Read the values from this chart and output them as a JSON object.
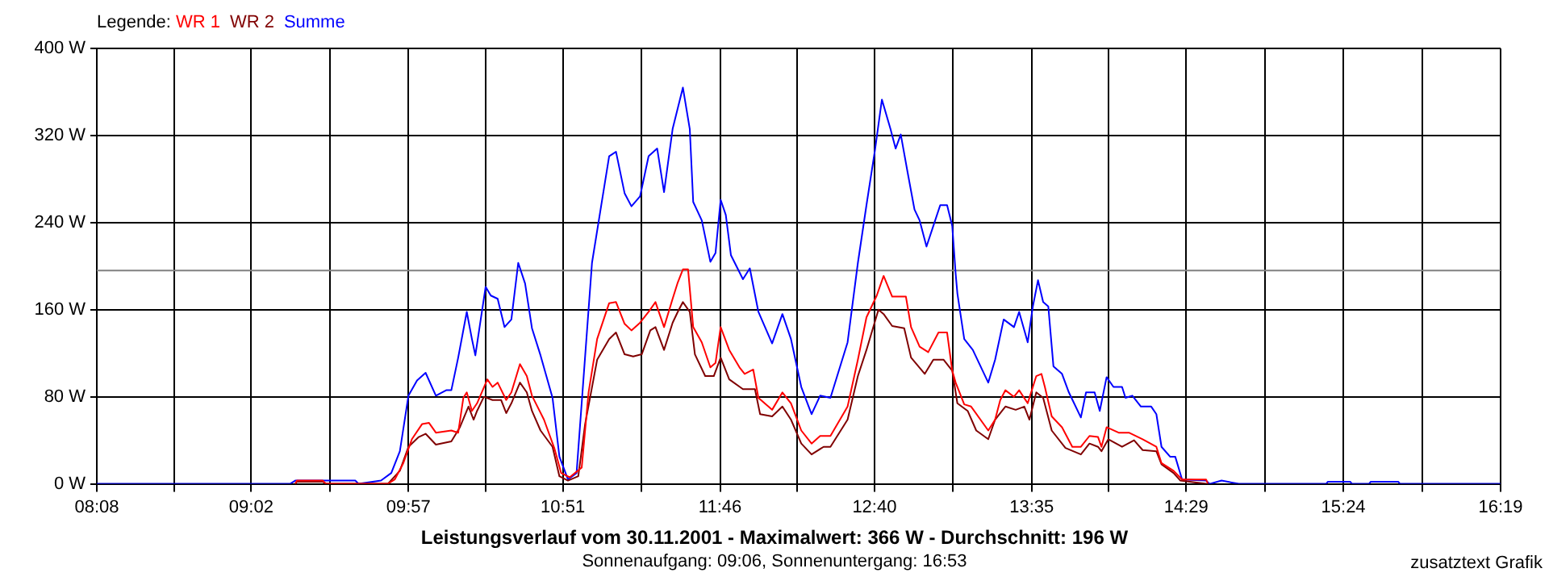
{
  "chart_data": {
    "type": "line",
    "title": "Leistungsverlauf vom 30.11.2001 - Maximalwert: 366 W - Durchschnitt: 196 W",
    "subtitle": "Sonnenaufgang: 09:06, Sonnenuntergang: 16:53",
    "legend_title": "Legende:",
    "annotations": [
      "zusatztext Grafik"
    ],
    "series": [
      {
        "name": "WR 1",
        "color": "#ff0000",
        "x": [
          9.29,
          9.3,
          9.45,
          9.47,
          9.83,
          9.87,
          9.92,
          9.97,
          10.03,
          10.07,
          10.11,
          10.2,
          10.24,
          10.27,
          10.29,
          10.32,
          10.35,
          10.41,
          10.44,
          10.47,
          10.52,
          10.55,
          10.6,
          10.64,
          10.67,
          10.74,
          10.8,
          10.84,
          10.89,
          10.96,
          11.0,
          11.05,
          11.12,
          11.16,
          11.21,
          11.25,
          11.3,
          11.35,
          11.39,
          11.44,
          11.49,
          11.52,
          11.55,
          11.58,
          11.61,
          11.66,
          11.71,
          11.74,
          11.77,
          11.82,
          11.88,
          11.91,
          11.96,
          11.99,
          12.07,
          12.13,
          12.18,
          12.24,
          12.3,
          12.35,
          12.41,
          12.51,
          12.57,
          12.62,
          12.68,
          12.72,
          12.77,
          12.81,
          12.85,
          12.88,
          12.93,
          12.98,
          13.04,
          13.09,
          13.12,
          13.14,
          13.19,
          13.23,
          13.33,
          13.37,
          13.4,
          13.43,
          13.48,
          13.51,
          13.56,
          13.61,
          13.64,
          13.66,
          13.7,
          13.76,
          13.82,
          13.87,
          13.92,
          13.97,
          13.99,
          14.02,
          14.09,
          14.15,
          14.23,
          14.31,
          14.34,
          14.41,
          14.46,
          14.6,
          14.61
        ],
        "values": [
          0,
          3,
          3,
          0,
          0,
          4,
          19,
          41,
          55,
          56,
          47,
          49,
          47,
          79,
          84,
          67,
          74,
          96,
          89,
          93,
          77,
          84,
          110,
          99,
          81,
          59,
          33,
          10,
          6,
          15,
          84,
          133,
          166,
          167,
          147,
          141,
          148,
          158,
          167,
          144,
          170,
          185,
          197,
          197,
          144,
          130,
          107,
          111,
          144,
          123,
          107,
          101,
          105,
          79,
          68,
          84,
          74,
          49,
          37,
          44,
          44,
          71,
          114,
          153,
          173,
          191,
          172,
          172,
          172,
          144,
          126,
          121,
          139,
          139,
          104,
          93,
          73,
          71,
          49,
          59,
          77,
          86,
          80,
          86,
          74,
          99,
          101,
          89,
          62,
          52,
          34,
          34,
          44,
          43,
          34,
          52,
          47,
          47,
          41,
          34,
          19,
          12,
          4,
          4,
          0
        ]
      },
      {
        "name": "WR 2",
        "color": "#800000",
        "x": [
          9.29,
          9.3,
          9.45,
          9.47,
          9.83,
          9.9,
          9.95,
          10.01,
          10.05,
          10.11,
          10.2,
          10.25,
          10.3,
          10.33,
          10.35,
          10.39,
          10.44,
          10.49,
          10.52,
          10.55,
          10.6,
          10.64,
          10.67,
          10.72,
          10.79,
          10.83,
          10.88,
          10.94,
          10.98,
          11.05,
          11.12,
          11.16,
          11.21,
          11.26,
          11.31,
          11.36,
          11.39,
          11.44,
          11.49,
          11.52,
          11.55,
          11.59,
          11.62,
          11.68,
          11.73,
          11.77,
          11.82,
          11.9,
          11.97,
          12.0,
          12.07,
          12.13,
          12.18,
          12.24,
          12.3,
          12.37,
          12.41,
          12.51,
          12.57,
          12.62,
          12.69,
          12.72,
          12.77,
          12.84,
          12.88,
          12.96,
          13.01,
          13.07,
          13.12,
          13.15,
          13.21,
          13.26,
          13.33,
          13.37,
          13.43,
          13.49,
          13.54,
          13.57,
          13.61,
          13.65,
          13.7,
          13.78,
          13.87,
          13.92,
          13.97,
          13.99,
          14.03,
          14.11,
          14.18,
          14.23,
          14.31,
          14.34,
          14.41,
          14.45,
          14.6
        ],
        "values": [
          0,
          2,
          2,
          0,
          0,
          12,
          34,
          43,
          46,
          36,
          39,
          52,
          71,
          59,
          67,
          80,
          77,
          77,
          65,
          74,
          93,
          84,
          67,
          49,
          34,
          7,
          3,
          7,
          55,
          114,
          133,
          139,
          119,
          117,
          119,
          141,
          144,
          123,
          148,
          158,
          167,
          158,
          119,
          99,
          99,
          116,
          96,
          87,
          87,
          64,
          62,
          71,
          59,
          37,
          27,
          34,
          34,
          59,
          99,
          123,
          160,
          156,
          145,
          143,
          116,
          101,
          114,
          114,
          104,
          74,
          67,
          49,
          41,
          59,
          71,
          68,
          71,
          59,
          84,
          79,
          49,
          33,
          27,
          37,
          34,
          30,
          41,
          34,
          40,
          31,
          30,
          18,
          10,
          3,
          0
        ]
      },
      {
        "name": "Summe",
        "color": "#0000ff",
        "x": [
          8.1333,
          9.26,
          9.29,
          9.64,
          9.66,
          9.79,
          9.85,
          9.9,
          9.95,
          10.0,
          10.05,
          10.11,
          10.17,
          10.2,
          10.24,
          10.29,
          10.32,
          10.34,
          10.4,
          10.43,
          10.47,
          10.51,
          10.55,
          10.59,
          10.63,
          10.67,
          10.72,
          10.79,
          10.83,
          10.88,
          10.93,
          11.02,
          11.07,
          11.12,
          11.16,
          11.21,
          11.25,
          11.3,
          11.35,
          11.4,
          11.44,
          11.49,
          11.55,
          11.59,
          11.61,
          11.66,
          11.71,
          11.74,
          11.77,
          11.8,
          11.83,
          11.9,
          11.94,
          11.99,
          12.07,
          12.13,
          12.18,
          12.24,
          12.3,
          12.35,
          12.41,
          12.51,
          12.57,
          12.62,
          12.67,
          12.71,
          12.76,
          12.79,
          12.82,
          12.86,
          12.9,
          12.93,
          12.97,
          13.01,
          13.05,
          13.09,
          13.12,
          13.14,
          13.15,
          13.19,
          13.24,
          13.33,
          13.37,
          13.42,
          13.48,
          13.51,
          13.56,
          13.59,
          13.62,
          13.65,
          13.68,
          13.71,
          13.76,
          13.8,
          13.87,
          13.9,
          13.95,
          13.98,
          14.02,
          14.06,
          14.11,
          14.13,
          14.17,
          14.22,
          14.28,
          14.31,
          14.34,
          14.39,
          14.42,
          14.46,
          14.6,
          14.62,
          14.69,
          14.79,
          15.3,
          15.31,
          15.44,
          15.45,
          15.55,
          15.56,
          15.72,
          15.73,
          16.3167
        ],
        "values": [
          0,
          0,
          3,
          3,
          0,
          3,
          10,
          30,
          81,
          95,
          102,
          81,
          86,
          86,
          116,
          158,
          133,
          118,
          181,
          173,
          170,
          144,
          151,
          203,
          184,
          143,
          118,
          79,
          25,
          4,
          10,
          203,
          252,
          301,
          305,
          267,
          255,
          264,
          301,
          308,
          268,
          326,
          364,
          326,
          259,
          242,
          204,
          212,
          261,
          247,
          210,
          188,
          198,
          158,
          129,
          156,
          133,
          89,
          64,
          81,
          79,
          130,
          203,
          256,
          307,
          353,
          326,
          308,
          321,
          286,
          252,
          242,
          218,
          237,
          256,
          256,
          237,
          193,
          175,
          133,
          123,
          93,
          114,
          151,
          144,
          158,
          130,
          163,
          187,
          167,
          163,
          108,
          101,
          84,
          61,
          84,
          84,
          67,
          98,
          89,
          89,
          79,
          81,
          71,
          71,
          64,
          34,
          25,
          25,
          4,
          3,
          0,
          3,
          0,
          0,
          2,
          2,
          0,
          0,
          2,
          2,
          0,
          0
        ]
      }
    ],
    "xlim": [
      8.1333,
      16.3167
    ],
    "xticks": [
      {
        "value": 8.1333,
        "label": "08:08"
      },
      {
        "value": 8.5833,
        "label": null
      },
      {
        "value": 9.0333,
        "label": "09:02"
      },
      {
        "value": 9.4917,
        "label": null
      },
      {
        "value": 9.95,
        "label": "09:57"
      },
      {
        "value": 10.4,
        "label": null
      },
      {
        "value": 10.85,
        "label": "10:51"
      },
      {
        "value": 11.3083,
        "label": null
      },
      {
        "value": 11.7667,
        "label": "11:46"
      },
      {
        "value": 12.2167,
        "label": null
      },
      {
        "value": 12.6667,
        "label": "12:40"
      },
      {
        "value": 13.125,
        "label": null
      },
      {
        "value": 13.5833,
        "label": "13:35"
      },
      {
        "value": 14.0333,
        "label": null
      },
      {
        "value": 14.4833,
        "label": "14:29"
      },
      {
        "value": 14.9417,
        "label": null
      },
      {
        "value": 15.4,
        "label": "15:24"
      },
      {
        "value": 15.8583,
        "label": null
      },
      {
        "value": 16.3167,
        "label": "16:19"
      }
    ],
    "ylim": [
      0,
      400
    ],
    "yticks": [
      {
        "value": 0,
        "label": "0 W"
      },
      {
        "value": 80,
        "label": "80 W"
      },
      {
        "value": 160,
        "label": "160 W"
      },
      {
        "value": 240,
        "label": "240 W"
      },
      {
        "value": 320,
        "label": "320 W"
      },
      {
        "value": 400,
        "label": "400 W"
      }
    ],
    "ref_lines": [
      {
        "axis": "y",
        "value": 196,
        "color": "#808080"
      }
    ],
    "grid": true,
    "legend": "top left",
    "marker": "none",
    "line_style": "solid"
  }
}
